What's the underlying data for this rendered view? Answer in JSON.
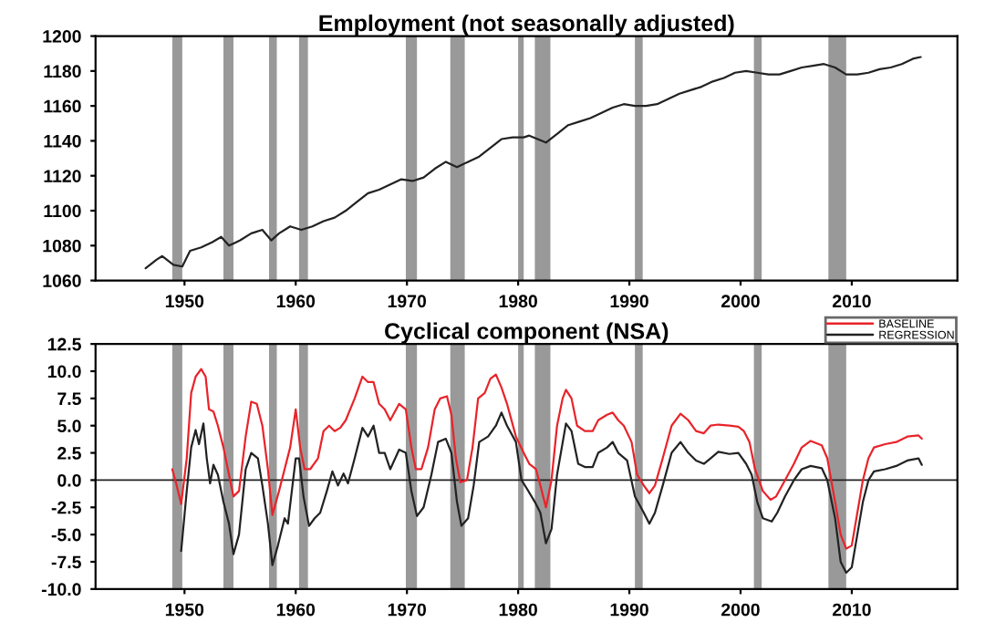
{
  "chart_data": [
    {
      "type": "line",
      "title": "Employment (not seasonally adjusted)",
      "xlim": [
        1942,
        2019.5
      ],
      "xticks": [
        1950,
        1960,
        1970,
        1980,
        1990,
        2000,
        2010
      ],
      "ylim": [
        1060,
        1200
      ],
      "yticks": [
        1060,
        1080,
        1100,
        1120,
        1140,
        1160,
        1180,
        1200
      ],
      "grid": false,
      "legend": false,
      "bands": [
        {
          "axis": "x",
          "from": 1948.9,
          "to": 1949.8,
          "color": "#999999"
        },
        {
          "axis": "x",
          "from": 1953.5,
          "to": 1954.4,
          "color": "#999999"
        },
        {
          "axis": "x",
          "from": 1957.6,
          "to": 1958.3,
          "color": "#999999"
        },
        {
          "axis": "x",
          "from": 1960.3,
          "to": 1961.1,
          "color": "#999999"
        },
        {
          "axis": "x",
          "from": 1969.9,
          "to": 1970.9,
          "color": "#999999"
        },
        {
          "axis": "x",
          "from": 1973.9,
          "to": 1975.2,
          "color": "#999999"
        },
        {
          "axis": "x",
          "from": 1980.0,
          "to": 1980.5,
          "color": "#999999"
        },
        {
          "axis": "x",
          "from": 1981.5,
          "to": 1982.9,
          "color": "#999999"
        },
        {
          "axis": "x",
          "from": 1990.5,
          "to": 1991.2,
          "color": "#999999"
        },
        {
          "axis": "x",
          "from": 2001.2,
          "to": 2001.9,
          "color": "#999999"
        },
        {
          "axis": "x",
          "from": 2007.9,
          "to": 2009.5,
          "color": "#999999"
        }
      ],
      "series": [
        {
          "color": "#222222",
          "x": [
            1946.5,
            1947.5,
            1948,
            1949,
            1949.8,
            1950.5,
            1951.5,
            1952.5,
            1953.3,
            1954,
            1955,
            1956,
            1957,
            1957.8,
            1958.5,
            1959.5,
            1960.5,
            1961.5,
            1962.5,
            1963.5,
            1964.5,
            1965.5,
            1966.5,
            1967.5,
            1968.5,
            1969.5,
            1970.5,
            1971.5,
            1972.5,
            1973.5,
            1974.5,
            1975.5,
            1976.5,
            1977.5,
            1978.5,
            1979.5,
            1980.5,
            1981,
            1982.5,
            1983.5,
            1984.5,
            1985.5,
            1986.5,
            1987.5,
            1988.5,
            1989.5,
            1990.5,
            1991.5,
            1992.5,
            1993.5,
            1994.5,
            1995.5,
            1996.5,
            1997.5,
            1998.5,
            1999.5,
            2000.5,
            2001.5,
            2002.5,
            2003.5,
            2004.5,
            2005.5,
            2006.5,
            2007.5,
            2008.5,
            2009.5,
            2010.5,
            2011.5,
            2012.5,
            2013.5,
            2014.5,
            2015.5,
            2016.2
          ],
          "values": [
            1067,
            1072,
            1074,
            1069,
            1068,
            1077,
            1079,
            1082,
            1085,
            1080,
            1083,
            1087,
            1089,
            1083,
            1087,
            1091,
            1089,
            1091,
            1094,
            1096,
            1100,
            1105,
            1110,
            1112,
            1115,
            1118,
            1117,
            1119,
            1124,
            1128,
            1125,
            1128,
            1131,
            1136,
            1141,
            1142,
            1142,
            1143,
            1139,
            1144,
            1149,
            1151,
            1153,
            1156,
            1159,
            1161,
            1160,
            1160,
            1161,
            1164,
            1167,
            1169,
            1171,
            1174,
            1176,
            1179,
            1180,
            1179,
            1178,
            1178,
            1180,
            1182,
            1183,
            1184,
            1182,
            1178,
            1178,
            1179,
            1181,
            1182,
            1184,
            1187,
            1188
          ]
        }
      ]
    },
    {
      "type": "line",
      "title": "Cyclical component (NSA)",
      "xlim": [
        1942,
        2019.5
      ],
      "xticks": [
        1950,
        1960,
        1970,
        1980,
        1990,
        2000,
        2010
      ],
      "ylim": [
        -10,
        12.5
      ],
      "yticks": [
        {
          "value": -10,
          "label": "-10.0"
        },
        {
          "value": -7.5,
          "label": "-7.5"
        },
        {
          "value": -5,
          "label": "-5.0"
        },
        {
          "value": -2.5,
          "label": "-2.5"
        },
        {
          "value": 0,
          "label": "0.0"
        },
        {
          "value": 2.5,
          "label": "2.5"
        },
        {
          "value": 5,
          "label": "5.0"
        },
        {
          "value": 7.5,
          "label": "7.5"
        },
        {
          "value": 10,
          "label": "10.0"
        },
        {
          "value": 12.5,
          "label": "12.5"
        }
      ],
      "grid": false,
      "legend": "top right",
      "ref_lines": [
        {
          "axis": "y",
          "value": 0,
          "color": "#222222"
        }
      ],
      "bands": [
        {
          "axis": "x",
          "from": 1948.9,
          "to": 1949.8,
          "color": "#999999"
        },
        {
          "axis": "x",
          "from": 1953.5,
          "to": 1954.4,
          "color": "#999999"
        },
        {
          "axis": "x",
          "from": 1957.6,
          "to": 1958.3,
          "color": "#999999"
        },
        {
          "axis": "x",
          "from": 1960.3,
          "to": 1961.1,
          "color": "#999999"
        },
        {
          "axis": "x",
          "from": 1969.9,
          "to": 1970.9,
          "color": "#999999"
        },
        {
          "axis": "x",
          "from": 1973.9,
          "to": 1975.2,
          "color": "#999999"
        },
        {
          "axis": "x",
          "from": 1980.0,
          "to": 1980.5,
          "color": "#999999"
        },
        {
          "axis": "x",
          "from": 1981.5,
          "to": 1982.9,
          "color": "#999999"
        },
        {
          "axis": "x",
          "from": 1990.5,
          "to": 1991.2,
          "color": "#999999"
        },
        {
          "axis": "x",
          "from": 2001.2,
          "to": 2001.9,
          "color": "#999999"
        },
        {
          "axis": "x",
          "from": 2007.9,
          "to": 2009.5,
          "color": "#999999"
        }
      ],
      "series": [
        {
          "name": "BASELINE",
          "color": "#e8242a",
          "x": [
            1948.9,
            1949.3,
            1949.7,
            1950.2,
            1950.6,
            1951,
            1951.5,
            1951.9,
            1952.2,
            1952.6,
            1953,
            1953.5,
            1954,
            1954.4,
            1954.9,
            1955.5,
            1956,
            1956.5,
            1957,
            1957.5,
            1957.9,
            1958.5,
            1959,
            1959.5,
            1960,
            1960.4,
            1960.8,
            1961.3,
            1962,
            1962.5,
            1963,
            1963.5,
            1964,
            1964.5,
            1965.3,
            1966,
            1966.5,
            1967,
            1967.5,
            1968,
            1968.5,
            1969.3,
            1969.9,
            1970.4,
            1970.8,
            1971.3,
            1971.9,
            1972.5,
            1973,
            1973.6,
            1974,
            1974.4,
            1974.8,
            1975.4,
            1975.9,
            1976.4,
            1977,
            1977.5,
            1978,
            1978.5,
            1979,
            1979.8,
            1980.5,
            1981,
            1981.6,
            1982,
            1982.5,
            1983,
            1983.5,
            1984,
            1984.3,
            1984.8,
            1985.3,
            1986,
            1986.7,
            1987.2,
            1988,
            1988.5,
            1989,
            1989.5,
            1990.2,
            1990.7,
            1991.3,
            1991.8,
            1992.3,
            1993,
            1993.8,
            1994.6,
            1995.3,
            1996,
            1996.7,
            1997.3,
            1998,
            1999,
            1999.8,
            2000.3,
            2000.8,
            2001.3,
            2002,
            2002.7,
            2003.2,
            2004,
            2004.8,
            2005.5,
            2006.3,
            2007.3,
            2007.8,
            2008.5,
            2009,
            2009.5,
            2010,
            2010.5,
            2011,
            2011.5,
            2012,
            2013,
            2014,
            2015,
            2016,
            2016.3
          ],
          "values": [
            1.0,
            -0.5,
            -2.2,
            2,
            8,
            9.5,
            10.2,
            9.5,
            6.5,
            6.3,
            5,
            3,
            0.5,
            -1.5,
            -1,
            4,
            7.2,
            7,
            5,
            1,
            -3.2,
            -1,
            1,
            3,
            6.5,
            3,
            1,
            1,
            2,
            4.5,
            5,
            4.5,
            4.8,
            5.5,
            7.5,
            9.5,
            9,
            9,
            7,
            6.5,
            5.5,
            7,
            6.5,
            3,
            1,
            1,
            3,
            6.5,
            7.5,
            7.7,
            6,
            2,
            -0.2,
            0,
            3,
            7.5,
            8,
            9.3,
            9.7,
            8.5,
            7,
            4,
            2.5,
            1.5,
            1,
            -0.5,
            -2.5,
            0,
            5,
            7.5,
            8.3,
            7.5,
            5,
            4.5,
            4.5,
            5.5,
            6,
            6.2,
            5.5,
            5,
            3.5,
            0.5,
            -0.5,
            -1.2,
            -0.5,
            2,
            5,
            6.1,
            5.5,
            4.5,
            4.3,
            5,
            5.1,
            5,
            4.9,
            4.5,
            3.5,
            1,
            -1,
            -1.8,
            -1.5,
            0,
            1.5,
            3,
            3.6,
            3.2,
            2,
            -2,
            -5,
            -6.3,
            -6,
            -3,
            0,
            2,
            3,
            3.3,
            3.5,
            4,
            4.1,
            3.8
          ]
        },
        {
          "name": "REGRESSION",
          "color": "#222222",
          "x": [
            1949.7,
            1950.2,
            1950.6,
            1951,
            1951.3,
            1951.7,
            1952,
            1952.3,
            1952.6,
            1953,
            1953.5,
            1954,
            1954.4,
            1954.9,
            1955.5,
            1956,
            1956.6,
            1957,
            1957.5,
            1957.9,
            1958.4,
            1959,
            1959.3,
            1960,
            1960.3,
            1960.7,
            1961.2,
            1961.7,
            1962.2,
            1962.8,
            1963.3,
            1963.8,
            1964.3,
            1964.7,
            1965.3,
            1966,
            1966.5,
            1967,
            1967.5,
            1968,
            1968.5,
            1969.3,
            1969.9,
            1970.4,
            1970.9,
            1971.5,
            1972.2,
            1972.8,
            1973.5,
            1974,
            1974.5,
            1974.9,
            1975.5,
            1976,
            1976.5,
            1977.3,
            1978,
            1978.5,
            1979,
            1979.8,
            1980.3,
            1980.8,
            1981.5,
            1982,
            1982.5,
            1983,
            1983.5,
            1984.3,
            1984.8,
            1985.4,
            1986,
            1986.7,
            1987.2,
            1988,
            1988.5,
            1989,
            1989.8,
            1990.5,
            1991.3,
            1991.8,
            1992.3,
            1993,
            1993.8,
            1994.6,
            1995.3,
            1996,
            1996.7,
            1997.3,
            1998,
            1999,
            1999.8,
            2000.5,
            2001,
            2001.5,
            2002,
            2002.8,
            2003.3,
            2004,
            2004.8,
            2005.5,
            2006.3,
            2007.3,
            2007.8,
            2008.5,
            2009,
            2009.5,
            2010,
            2010.5,
            2011,
            2011.5,
            2012,
            2013,
            2014,
            2015,
            2016,
            2016.3
          ],
          "values": [
            -6.5,
            -1,
            3,
            4.6,
            3.3,
            5.2,
            2,
            -0.3,
            1.4,
            0.5,
            -2,
            -4,
            -6.8,
            -5,
            1,
            2.5,
            2,
            -0.5,
            -4,
            -7.8,
            -6,
            -3.5,
            -4,
            2,
            2,
            -1.5,
            -4.2,
            -3.5,
            -3,
            -1,
            0.8,
            -0.5,
            0.6,
            -0.3,
            2,
            4.8,
            4,
            5,
            2.5,
            2.5,
            1,
            2.8,
            2.5,
            -1,
            -3.3,
            -2.5,
            0.5,
            3.5,
            3.8,
            2.5,
            -2,
            -4.2,
            -3.5,
            -0.5,
            3.5,
            4,
            5,
            6.2,
            5,
            3.5,
            0,
            -0.8,
            -2,
            -3,
            -5.8,
            -4.5,
            0.5,
            5.2,
            4.5,
            1.5,
            1.2,
            1.2,
            2.5,
            3,
            3.5,
            2.5,
            1.8,
            -1.5,
            -3,
            -4,
            -3,
            -0.5,
            2.5,
            3.5,
            2.5,
            1.8,
            1.5,
            2,
            2.6,
            2.4,
            2.5,
            1.5,
            0.5,
            -2,
            -3.5,
            -3.8,
            -3,
            -1.5,
            0,
            1,
            1.3,
            1.1,
            0,
            -3.5,
            -7.5,
            -8.5,
            -8,
            -5,
            -2,
            0,
            0.8,
            1,
            1.3,
            1.8,
            2,
            1.4
          ]
        }
      ]
    }
  ]
}
